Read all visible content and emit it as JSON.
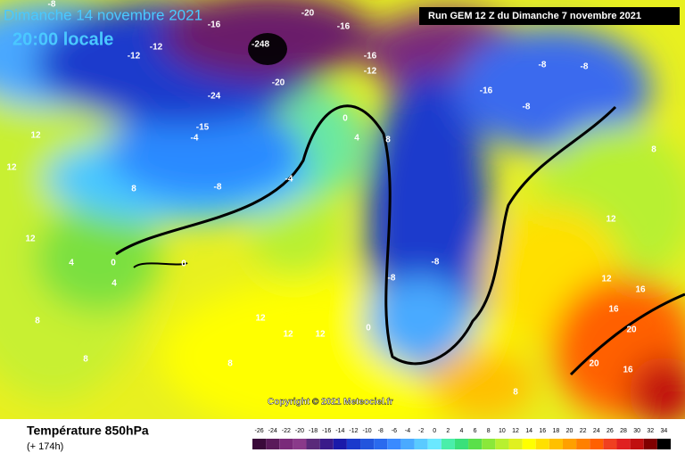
{
  "header": {
    "title": "Dimanche 14 novembre 2021",
    "time": "20:00 locale",
    "run": "Run GEM 12 Z du Dimanche 7 novembre 2021"
  },
  "map": {
    "copyright": "Copyright © 2021 Meteociel.fr",
    "labels": [
      "-8",
      "-20",
      "-16",
      "-16",
      "-248",
      "-12",
      "-12",
      "-16",
      "-12",
      "-16",
      "-8",
      "-8",
      "-8",
      "-20",
      "-24",
      "-15",
      "-4",
      "-8",
      "-4",
      "0",
      "4",
      "8",
      "12",
      "12",
      "8",
      "12",
      "4",
      "0",
      "0",
      "4",
      "8",
      "12",
      "12",
      "12",
      "8",
      "8",
      "0",
      "-8",
      "-8",
      "16",
      "16",
      "20",
      "16",
      "20",
      "12",
      "12",
      "8",
      "8"
    ]
  },
  "footer": {
    "variable": "Température 850hPa",
    "lead": "(+ 174h)"
  },
  "colorbar": {
    "labels": [
      -26,
      -24,
      -22,
      -20,
      -18,
      -16,
      -14,
      -12,
      -10,
      -8,
      -6,
      -4,
      -2,
      0,
      2,
      4,
      6,
      8,
      10,
      12,
      14,
      16,
      18,
      20,
      22,
      24,
      26,
      28,
      30,
      32,
      34
    ],
    "colors": [
      "#3a0a3a",
      "#5a1a5a",
      "#7a2a7a",
      "#8a3a8a",
      "#5a2a7a",
      "#3a1a8a",
      "#1a1aaa",
      "#1a3acc",
      "#2255dd",
      "#2a6aee",
      "#3a8aff",
      "#4aaaff",
      "#5acaff",
      "#6ae8ff",
      "#4aeeaa",
      "#3ae07a",
      "#5ae04a",
      "#8ae83a",
      "#b8f030",
      "#e0f020",
      "#ffff00",
      "#ffe000",
      "#ffc000",
      "#ffa000",
      "#ff8000",
      "#ff6000",
      "#f04020",
      "#e02020",
      "#c01010",
      "#800000",
      "#000000"
    ]
  }
}
